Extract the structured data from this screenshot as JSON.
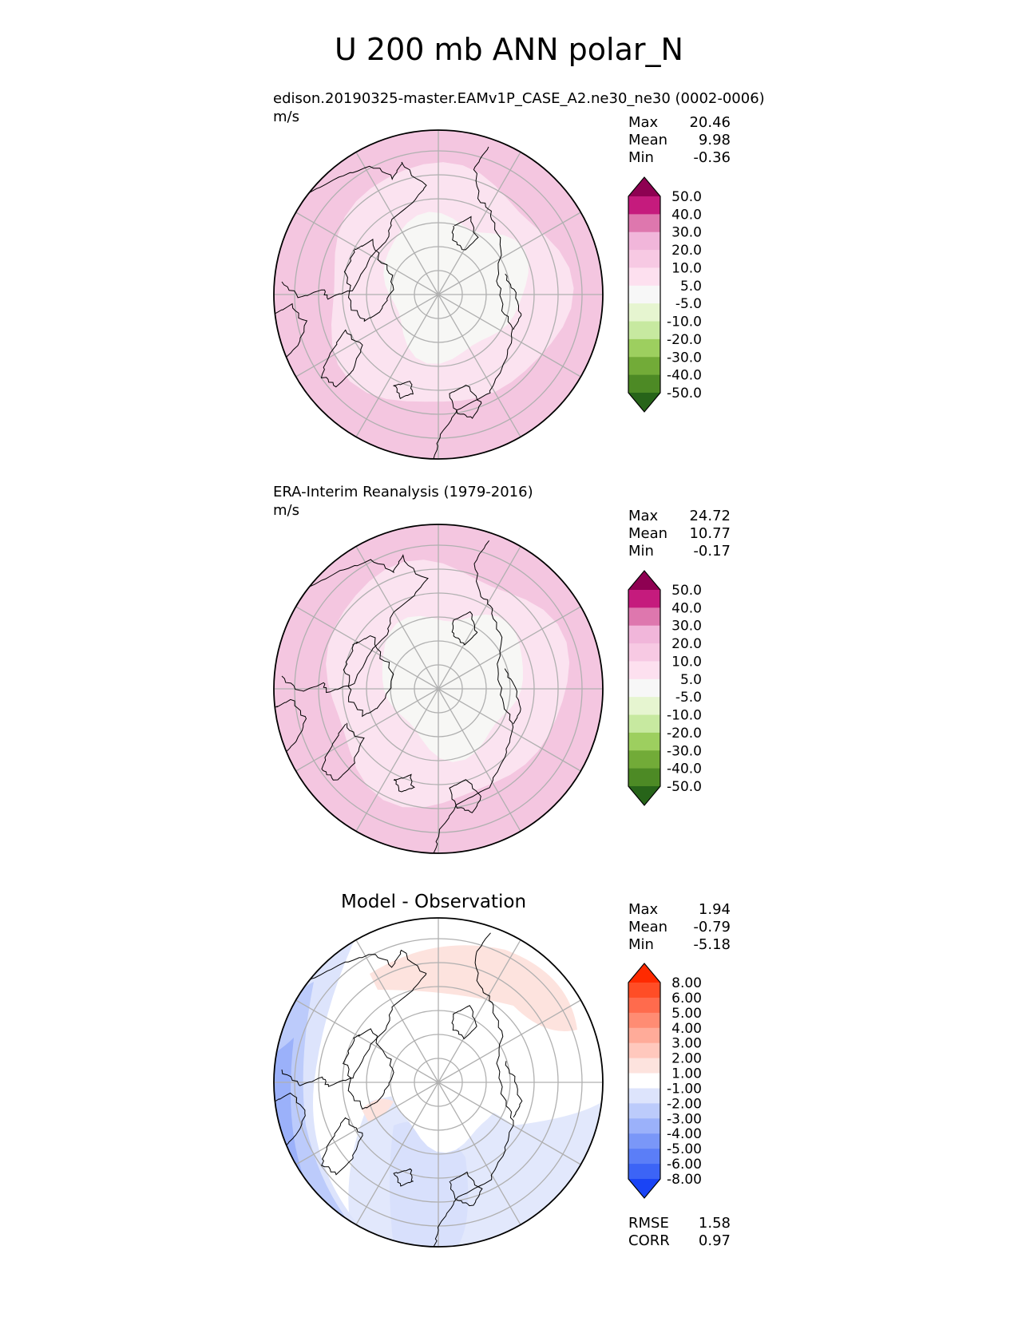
{
  "figure": {
    "title": "U 200 mb ANN polar_N"
  },
  "panels": [
    {
      "id": "test",
      "title": "edison.20190325-master.EAMv1P_CASE_A2.ne30_ne30 (0002-0006)",
      "units": "m/s",
      "stats": [
        {
          "label": "Max",
          "value": "20.46"
        },
        {
          "label": "Mean",
          "value": "9.98"
        },
        {
          "label": "Min",
          "value": "-0.36"
        }
      ],
      "colorbar": {
        "labels": [
          "50.0",
          "40.0",
          "30.0",
          "20.0",
          "10.0",
          "5.0",
          "-5.0",
          "-10.0",
          "-20.0",
          "-30.0",
          "-40.0",
          "-50.0"
        ],
        "colors": [
          "#8e0152",
          "#c51b7d",
          "#de77ae",
          "#f1b6da",
          "#f7c9e3",
          "#fde0ef",
          "#f7f7f7",
          "#e6f5d0",
          "#c7e9a0",
          "#9dcf5f",
          "#72ab38",
          "#4d8a25",
          "#276419"
        ]
      }
    },
    {
      "id": "reference",
      "title": "ERA-Interim Reanalysis (1979-2016)",
      "units": "m/s",
      "stats": [
        {
          "label": "Max",
          "value": "24.72"
        },
        {
          "label": "Mean",
          "value": "10.77"
        },
        {
          "label": "Min",
          "value": "-0.17"
        }
      ],
      "colorbar": {
        "labels": [
          "50.0",
          "40.0",
          "30.0",
          "20.0",
          "10.0",
          "5.0",
          "-5.0",
          "-10.0",
          "-20.0",
          "-30.0",
          "-40.0",
          "-50.0"
        ],
        "colors": [
          "#8e0152",
          "#c51b7d",
          "#de77ae",
          "#f1b6da",
          "#f7c9e3",
          "#fde0ef",
          "#f7f7f7",
          "#e6f5d0",
          "#c7e9a0",
          "#9dcf5f",
          "#72ab38",
          "#4d8a25",
          "#276419"
        ]
      }
    },
    {
      "id": "difference",
      "title": "Model - Observation",
      "units": "",
      "stats": [
        {
          "label": "Max",
          "value": "1.94"
        },
        {
          "label": "Mean",
          "value": "-0.79"
        },
        {
          "label": "Min",
          "value": "-5.18"
        }
      ],
      "metrics": [
        {
          "label": "RMSE",
          "value": "1.58"
        },
        {
          "label": "CORR",
          "value": "0.97"
        }
      ],
      "colorbar": {
        "labels": [
          "8.00",
          "6.00",
          "5.00",
          "4.00",
          "3.00",
          "2.00",
          "1.00",
          "-1.00",
          "-2.00",
          "-3.00",
          "-4.00",
          "-5.00",
          "-6.00",
          "-8.00"
        ],
        "colors": [
          "#ff2a00",
          "#ff4d26",
          "#ff6b4d",
          "#ff8c73",
          "#ffab99",
          "#ffc8bd",
          "#fde3de",
          "#ffffff",
          "#dde4fc",
          "#bccbfb",
          "#9bb1fa",
          "#7a97f8",
          "#5b7ef7",
          "#3c64f6",
          "#1a44f5"
        ]
      }
    }
  ],
  "colors": {
    "continent_outline": "#000000",
    "grid": "#b0b0b0",
    "map_border": "#000000"
  }
}
